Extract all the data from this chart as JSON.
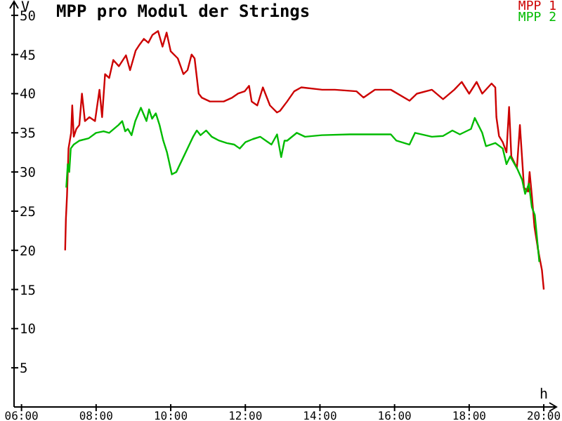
{
  "chart_data": {
    "type": "line",
    "title": "MPP pro Modul der Strings",
    "xlabel": "h",
    "ylabel": "V",
    "xlim": [
      5.8,
      20.3
    ],
    "ylim": [
      0,
      51.6
    ],
    "xticks": [
      {
        "value": 6,
        "label": "06:00"
      },
      {
        "value": 8,
        "label": "08:00"
      },
      {
        "value": 10,
        "label": "10:00"
      },
      {
        "value": 12,
        "label": "12:00"
      },
      {
        "value": 14,
        "label": "14:00"
      },
      {
        "value": 16,
        "label": "16:00"
      },
      {
        "value": 18,
        "label": "18:00"
      },
      {
        "value": 20,
        "label": "20:00"
      }
    ],
    "yticks": [
      5,
      10,
      15,
      20,
      25,
      30,
      35,
      40,
      45,
      50
    ],
    "grid": false,
    "legend": "top right",
    "marker": "none",
    "line_style": "solid",
    "series": [
      {
        "name": "MPP 1",
        "color": "#cc0000",
        "x": [
          7.17,
          7.19,
          7.22,
          7.26,
          7.33,
          7.36,
          7.4,
          7.47,
          7.55,
          7.62,
          7.7,
          7.82,
          7.97,
          8.09,
          8.16,
          8.24,
          8.35,
          8.46,
          8.61,
          8.8,
          8.91,
          9.06,
          9.17,
          9.28,
          9.4,
          9.51,
          9.66,
          9.78,
          9.89,
          10.0,
          10.19,
          10.34,
          10.45,
          10.56,
          10.64,
          10.75,
          10.83,
          11.05,
          11.42,
          11.65,
          11.8,
          11.98,
          12.1,
          12.17,
          12.32,
          12.47,
          12.66,
          12.85,
          12.93,
          13.12,
          13.31,
          13.5,
          14.06,
          14.4,
          14.98,
          15.17,
          15.47,
          15.9,
          16.4,
          16.6,
          17.0,
          17.3,
          17.6,
          17.8,
          18.0,
          18.2,
          18.35,
          18.6,
          18.7,
          18.73,
          18.8,
          18.9,
          19.0,
          19.07,
          19.13,
          19.28,
          19.36,
          19.47,
          19.58,
          19.62,
          19.68,
          19.75,
          19.85,
          19.95,
          20.0
        ],
        "values": [
          20,
          24,
          27,
          33,
          35,
          38.5,
          34.5,
          35.5,
          36,
          40,
          36.5,
          37,
          36.5,
          40.5,
          37,
          42.5,
          42,
          44.3,
          43.5,
          44.9,
          43,
          45.5,
          46.3,
          47,
          46.5,
          47.5,
          48,
          46,
          47.8,
          45.4,
          44.5,
          42.5,
          43,
          45,
          44.5,
          40,
          39.5,
          39,
          39,
          39.5,
          40,
          40.3,
          41,
          39,
          38.5,
          40.8,
          38.5,
          37.6,
          37.8,
          39,
          40.3,
          40.8,
          40.5,
          40.5,
          40.3,
          39.5,
          40.5,
          40.5,
          39.1,
          40,
          40.5,
          39.3,
          40.5,
          41.5,
          40,
          41.5,
          40,
          41.3,
          40.8,
          37,
          34.6,
          33.8,
          32.5,
          38.3,
          32,
          30.5,
          36,
          28,
          27.5,
          30,
          27,
          23,
          20,
          17.5,
          15
        ]
      },
      {
        "name": "MPP 2",
        "color": "#00bb00",
        "x": [
          7.2,
          7.24,
          7.28,
          7.32,
          7.4,
          7.55,
          7.8,
          8.0,
          8.2,
          8.35,
          8.6,
          8.7,
          8.78,
          8.85,
          8.95,
          9.05,
          9.2,
          9.35,
          9.42,
          9.5,
          9.6,
          9.7,
          9.8,
          9.9,
          9.97,
          10.03,
          10.15,
          10.3,
          10.5,
          10.6,
          10.7,
          10.8,
          10.95,
          11.1,
          11.3,
          11.5,
          11.7,
          11.85,
          12.0,
          12.2,
          12.4,
          12.55,
          12.7,
          12.85,
          12.96,
          13.05,
          13.12,
          13.38,
          13.6,
          14.05,
          14.8,
          15.9,
          16.05,
          16.4,
          16.55,
          17.0,
          17.3,
          17.55,
          17.75,
          18.05,
          18.15,
          18.35,
          18.45,
          18.7,
          18.9,
          19.0,
          19.1,
          19.28,
          19.42,
          19.5,
          19.6,
          19.68,
          19.76,
          19.88
        ],
        "values": [
          28,
          31,
          30,
          33,
          33.5,
          34,
          34.3,
          35,
          35.2,
          35,
          36,
          36.5,
          35.2,
          35.5,
          34.7,
          36.5,
          38.2,
          36.5,
          38,
          36.8,
          37.5,
          36,
          34,
          32.5,
          31,
          29.7,
          30,
          31.5,
          33.5,
          34.5,
          35.3,
          34.7,
          35.3,
          34.5,
          34,
          33.7,
          33.5,
          33,
          33.8,
          34.2,
          34.5,
          34,
          33.5,
          34.8,
          31.9,
          34,
          34,
          35,
          34.5,
          34.7,
          34.8,
          34.8,
          34,
          33.5,
          35,
          34.5,
          34.6,
          35.3,
          34.8,
          35.5,
          36.9,
          35,
          33.3,
          33.7,
          33,
          31,
          32,
          30.5,
          29,
          27.2,
          28.5,
          25.5,
          24.5,
          18.5
        ]
      }
    ]
  }
}
